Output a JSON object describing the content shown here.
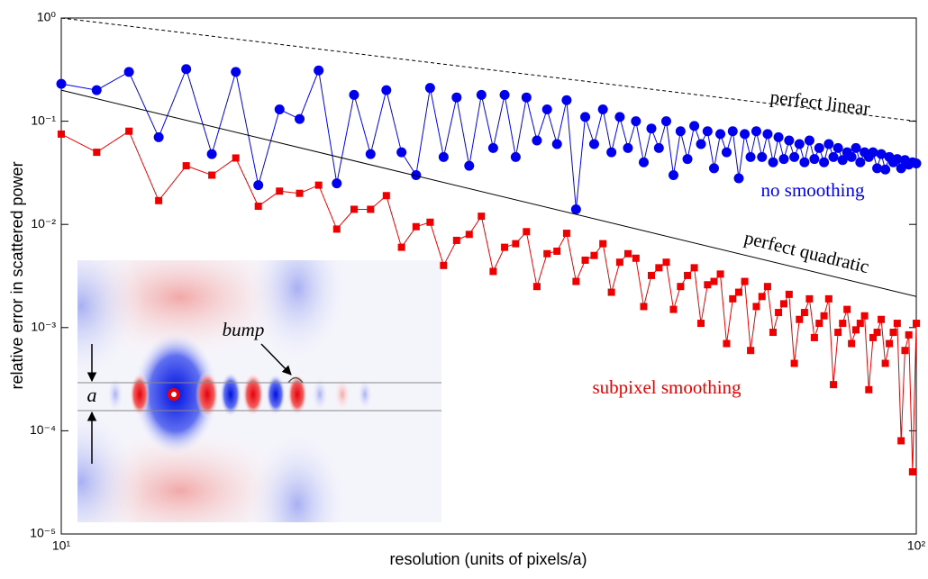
{
  "chart_data": {
    "type": "line",
    "xscale": "log",
    "yscale": "log",
    "xlabel": "resolution (units of pixels/a)",
    "ylabel": "relative error in scattered power",
    "xlim": [
      10,
      100
    ],
    "ylim": [
      1e-05,
      1
    ],
    "xticks": [
      {
        "value": 10,
        "label": "10¹"
      },
      {
        "value": 100,
        "label": "10²"
      }
    ],
    "yticks": [
      {
        "value": 1e-05,
        "label": "10⁻⁵"
      },
      {
        "value": 0.0001,
        "label": "10⁻⁴"
      },
      {
        "value": 0.001,
        "label": "10⁻³"
      },
      {
        "value": 0.01,
        "label": "10⁻²"
      },
      {
        "value": 0.1,
        "label": "10⁻¹"
      },
      {
        "value": 1,
        "label": "10⁰"
      }
    ],
    "series": [
      {
        "name": "no smoothing",
        "color": "#0000ee",
        "marker": "circle",
        "x": [
          10,
          11,
          12,
          13,
          14,
          15,
          16,
          17,
          18,
          19,
          20,
          21,
          22,
          23,
          24,
          25,
          26,
          27,
          28,
          29,
          30,
          31,
          32,
          33,
          34,
          35,
          36,
          37,
          38,
          39,
          40,
          41,
          42,
          43,
          44,
          45,
          46,
          47,
          48,
          49,
          50,
          51,
          52,
          53,
          54,
          55,
          56,
          57,
          58,
          59,
          60,
          61,
          62,
          63,
          64,
          65,
          66,
          67,
          68,
          69,
          70,
          71,
          72,
          73,
          74,
          75,
          76,
          77,
          78,
          79,
          80,
          81,
          82,
          83,
          84,
          85,
          86,
          87,
          88,
          89,
          90,
          91,
          92,
          93,
          94,
          95,
          96,
          97,
          98,
          99,
          100
        ],
        "values": [
          0.23,
          0.2,
          0.3,
          0.07,
          0.32,
          0.048,
          0.3,
          0.024,
          0.13,
          0.105,
          0.31,
          0.025,
          0.18,
          0.048,
          0.2,
          0.05,
          0.03,
          0.21,
          0.045,
          0.17,
          0.037,
          0.18,
          0.055,
          0.18,
          0.045,
          0.17,
          0.065,
          0.13,
          0.06,
          0.16,
          0.014,
          0.11,
          0.06,
          0.13,
          0.05,
          0.11,
          0.055,
          0.1,
          0.04,
          0.085,
          0.055,
          0.1,
          0.03,
          0.08,
          0.043,
          0.09,
          0.06,
          0.08,
          0.035,
          0.075,
          0.05,
          0.08,
          0.028,
          0.075,
          0.045,
          0.08,
          0.045,
          0.075,
          0.04,
          0.07,
          0.043,
          0.065,
          0.045,
          0.06,
          0.04,
          0.065,
          0.043,
          0.055,
          0.04,
          0.06,
          0.045,
          0.055,
          0.042,
          0.05,
          0.045,
          0.055,
          0.04,
          0.05,
          0.045,
          0.05,
          0.035,
          0.048,
          0.034,
          0.045,
          0.04,
          0.043,
          0.035,
          0.042,
          0.038,
          0.04,
          0.039
        ]
      },
      {
        "name": "subpixel smoothing",
        "color": "#ee0000",
        "marker": "square",
        "x": [
          10,
          11,
          12,
          13,
          14,
          15,
          16,
          17,
          18,
          19,
          20,
          21,
          22,
          23,
          24,
          25,
          26,
          27,
          28,
          29,
          30,
          31,
          32,
          33,
          34,
          35,
          36,
          37,
          38,
          39,
          40,
          41,
          42,
          43,
          44,
          45,
          46,
          47,
          48,
          49,
          50,
          51,
          52,
          53,
          54,
          55,
          56,
          57,
          58,
          59,
          60,
          61,
          62,
          63,
          64,
          65,
          66,
          67,
          68,
          69,
          70,
          71,
          72,
          73,
          74,
          75,
          76,
          77,
          78,
          79,
          80,
          81,
          82,
          83,
          84,
          85,
          86,
          87,
          88,
          89,
          90,
          91,
          92,
          93,
          94,
          95,
          96,
          97,
          98,
          99,
          100
        ],
        "values": [
          0.075,
          0.05,
          0.08,
          0.017,
          0.037,
          0.03,
          0.044,
          0.015,
          0.021,
          0.02,
          0.024,
          0.009,
          0.014,
          0.014,
          0.019,
          0.006,
          0.0095,
          0.0105,
          0.004,
          0.007,
          0.008,
          0.012,
          0.0035,
          0.006,
          0.0065,
          0.0085,
          0.0025,
          0.0052,
          0.0055,
          0.0082,
          0.0028,
          0.0045,
          0.005,
          0.0065,
          0.0022,
          0.0043,
          0.0052,
          0.0047,
          0.0016,
          0.0032,
          0.0038,
          0.0043,
          0.0015,
          0.0025,
          0.0032,
          0.0038,
          0.0011,
          0.0026,
          0.0028,
          0.0033,
          0.0007,
          0.0019,
          0.0022,
          0.0028,
          0.0006,
          0.0016,
          0.002,
          0.0025,
          0.0009,
          0.0014,
          0.0017,
          0.0021,
          0.00045,
          0.0012,
          0.0014,
          0.0019,
          0.0008,
          0.0011,
          0.0013,
          0.0019,
          0.00028,
          0.0009,
          0.0011,
          0.0015,
          0.0007,
          0.00095,
          0.0011,
          0.0013,
          0.00025,
          0.0008,
          0.0009,
          0.0012,
          0.00045,
          0.0007,
          0.0009,
          0.0011,
          8e-05,
          0.0006,
          0.00085,
          4e-05,
          0.0011
        ]
      },
      {
        "name": "perfect linear",
        "color": "#000000",
        "dash": true,
        "x": [
          10,
          100
        ],
        "values": [
          1,
          0.1
        ]
      },
      {
        "name": "perfect quadratic",
        "color": "#000000",
        "dash": false,
        "x": [
          10,
          100
        ],
        "values": [
          0.2,
          0.002
        ]
      }
    ]
  },
  "inset": {
    "bump": "bump",
    "a": "a"
  }
}
